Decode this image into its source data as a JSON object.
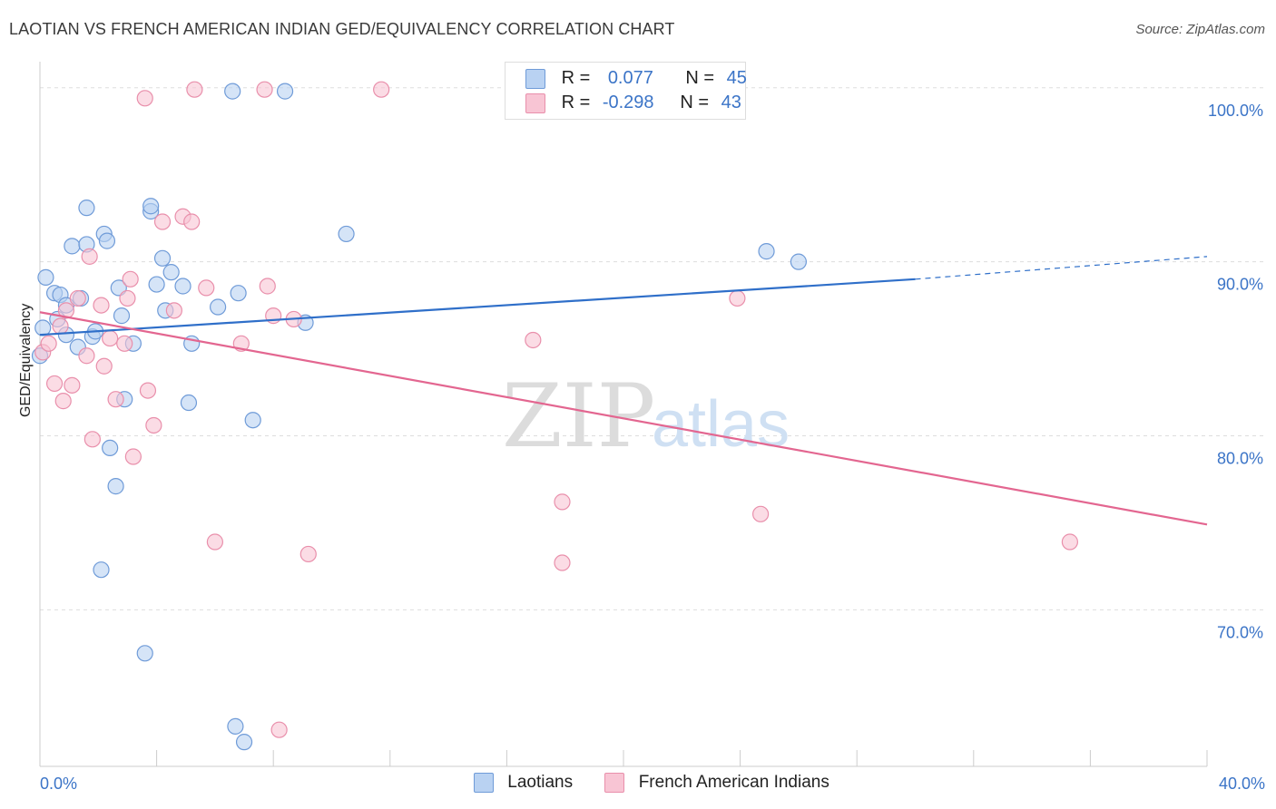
{
  "header": {
    "title": "LAOTIAN VS FRENCH AMERICAN INDIAN GED/EQUIVALENCY CORRELATION CHART",
    "source": "Source: ZipAtlas.com"
  },
  "legend": {
    "r_label": "R =",
    "n_label": "N =",
    "series": [
      {
        "name": "Laotians",
        "r": "0.077",
        "n": "45"
      },
      {
        "name": "French American Indians",
        "r": "-0.298",
        "n": "43"
      }
    ]
  },
  "watermark": {
    "zip": "ZIP",
    "atlas": "atlas"
  },
  "colors": {
    "blue_fill": "#b9d2f2",
    "blue_stroke": "#6f9bd8",
    "blue_line": "#2f6fc9",
    "pink_fill": "#f8c5d4",
    "pink_stroke": "#e98fab",
    "pink_line": "#e36690",
    "axis_text": "#3b74c7",
    "grid": "#dddddd"
  },
  "chart_data": {
    "type": "scatter",
    "title": "LAOTIAN VS FRENCH AMERICAN INDIAN GED/EQUIVALENCY CORRELATION CHART",
    "xlabel": "",
    "ylabel": "GED/Equivalency",
    "xlim": [
      0,
      40
    ],
    "ylim": [
      61,
      101.5
    ],
    "x_tick_labels": [
      "0.0%",
      "40.0%"
    ],
    "y_ticks": [
      70,
      80,
      90,
      100
    ],
    "y_tick_labels": [
      "70.0%",
      "80.0%",
      "90.0%",
      "100.0%"
    ],
    "series": [
      {
        "name": "Laotians",
        "r": 0.077,
        "n": 45,
        "points": [
          [
            0.0,
            84.6
          ],
          [
            0.1,
            86.2
          ],
          [
            0.2,
            89.1
          ],
          [
            0.5,
            88.2
          ],
          [
            0.7,
            88.1
          ],
          [
            0.6,
            86.7
          ],
          [
            0.9,
            85.8
          ],
          [
            0.9,
            87.5
          ],
          [
            1.1,
            90.9
          ],
          [
            1.3,
            85.1
          ],
          [
            1.4,
            87.9
          ],
          [
            1.6,
            91.0
          ],
          [
            1.6,
            93.1
          ],
          [
            1.8,
            85.7
          ],
          [
            1.9,
            86.0
          ],
          [
            2.2,
            91.6
          ],
          [
            2.3,
            91.2
          ],
          [
            2.4,
            79.3
          ],
          [
            2.6,
            77.1
          ],
          [
            2.7,
            88.5
          ],
          [
            2.8,
            86.9
          ],
          [
            2.9,
            82.1
          ],
          [
            3.2,
            85.3
          ],
          [
            3.6,
            67.5
          ],
          [
            3.8,
            92.9
          ],
          [
            3.8,
            93.2
          ],
          [
            4.0,
            88.7
          ],
          [
            4.2,
            90.2
          ],
          [
            4.3,
            87.2
          ],
          [
            4.5,
            89.4
          ],
          [
            4.9,
            88.6
          ],
          [
            5.1,
            81.9
          ],
          [
            5.2,
            85.3
          ],
          [
            6.1,
            87.4
          ],
          [
            6.6,
            99.8
          ],
          [
            6.7,
            63.3
          ],
          [
            6.8,
            88.2
          ],
          [
            7.0,
            62.4
          ],
          [
            7.3,
            80.9
          ],
          [
            8.4,
            99.8
          ],
          [
            9.1,
            86.5
          ],
          [
            10.5,
            91.6
          ],
          [
            2.1,
            72.3
          ],
          [
            24.9,
            90.6
          ],
          [
            26.0,
            90.0
          ]
        ]
      },
      {
        "name": "French American Indians",
        "r": -0.298,
        "n": 43,
        "points": [
          [
            0.1,
            84.8
          ],
          [
            0.3,
            85.3
          ],
          [
            0.5,
            83.0
          ],
          [
            0.7,
            86.3
          ],
          [
            0.8,
            82.0
          ],
          [
            0.9,
            87.2
          ],
          [
            1.1,
            82.9
          ],
          [
            1.3,
            87.9
          ],
          [
            1.6,
            84.6
          ],
          [
            1.7,
            90.3
          ],
          [
            1.8,
            79.8
          ],
          [
            2.1,
            87.5
          ],
          [
            2.2,
            84.0
          ],
          [
            2.4,
            85.6
          ],
          [
            2.6,
            82.1
          ],
          [
            2.9,
            85.3
          ],
          [
            3.0,
            87.9
          ],
          [
            3.1,
            89.0
          ],
          [
            3.2,
            78.8
          ],
          [
            3.6,
            99.4
          ],
          [
            3.7,
            82.6
          ],
          [
            3.9,
            80.6
          ],
          [
            4.2,
            92.3
          ],
          [
            4.6,
            87.2
          ],
          [
            4.9,
            92.6
          ],
          [
            5.2,
            92.3
          ],
          [
            5.3,
            99.9
          ],
          [
            5.7,
            88.5
          ],
          [
            6.0,
            73.9
          ],
          [
            6.9,
            85.3
          ],
          [
            7.7,
            99.9
          ],
          [
            7.8,
            88.6
          ],
          [
            8.0,
            86.9
          ],
          [
            8.2,
            63.1
          ],
          [
            8.7,
            86.7
          ],
          [
            9.2,
            73.2
          ],
          [
            11.7,
            99.9
          ],
          [
            16.9,
            85.5
          ],
          [
            17.9,
            76.2
          ],
          [
            17.9,
            72.7
          ],
          [
            23.9,
            87.9
          ],
          [
            24.7,
            75.5
          ],
          [
            35.3,
            73.9
          ]
        ]
      }
    ],
    "trendlines": [
      {
        "series": "Laotians",
        "x_start": 0,
        "y_start": 85.8,
        "x_end": 30,
        "y_end": 89.0,
        "x_dash_end": 40,
        "y_dash_end": 90.3
      },
      {
        "series": "French American Indians",
        "x_start": 0,
        "y_start": 87.1,
        "x_end": 40,
        "y_end": 74.9
      }
    ]
  }
}
